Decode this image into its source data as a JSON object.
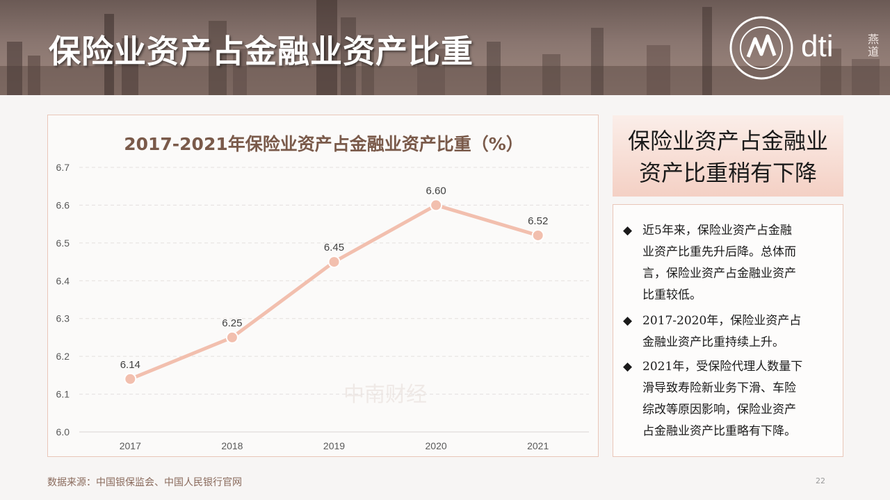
{
  "header": {
    "title": "保险业资产占金融业资产比重",
    "logo_text": "dti",
    "logo_side": "燕道"
  },
  "chart_data": {
    "type": "line",
    "title": "2017-2021年保险业资产占金融业资产比重（%）",
    "categories": [
      "2017",
      "2018",
      "2019",
      "2020",
      "2021"
    ],
    "values": [
      6.14,
      6.25,
      6.45,
      6.6,
      6.52
    ],
    "data_labels": [
      "6.14",
      "6.25",
      "6.45",
      "6.60",
      "6.52"
    ],
    "y_ticks": [
      "6.0",
      "6.1",
      "6.2",
      "6.3",
      "6.4",
      "6.5",
      "6.6",
      "6.7"
    ],
    "ylim": [
      6.0,
      6.7
    ],
    "grid": true,
    "line_color": "#f2bfae",
    "watermark": "中南财经"
  },
  "summary": {
    "heading_lines": [
      "保险业资产占金融业",
      "资产比重稍有下降"
    ],
    "bullet_symbol": "◆",
    "bullets": [
      {
        "lines": [
          "近5年来，保险业资产占金融",
          "业资产比重先升后降。总体而",
          "言，保险业资产占金融业资产",
          "比重较低。"
        ]
      },
      {
        "lines": [
          "2017-2020年，保险业资产占",
          "金融业资产比重持续上升。"
        ]
      },
      {
        "lines": [
          "2021年，受保险代理人数量下",
          "滑导致寿险新业务下滑、车险",
          "综改等原因影响，保险业资产",
          "占金融业资产比重略有下降。"
        ]
      }
    ]
  },
  "footer": {
    "source": "数据来源：中国银保监会、中国人民银行官网",
    "page": "22"
  }
}
